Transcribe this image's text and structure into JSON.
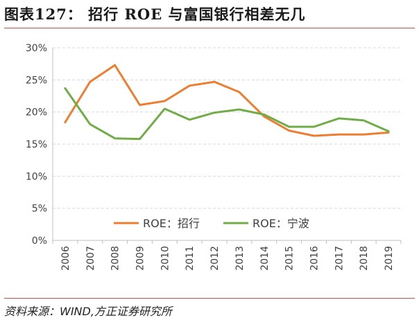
{
  "title": "图表127：  招行 ROE 与富国银行相差无几",
  "source": "资料来源：WIND,方正证券研究所",
  "colors": {
    "rule": "#c0504d",
    "series_1": "#ed7d31",
    "series_2": "#70ad47",
    "grid": "#d9d9d9",
    "axis": "#bfbfbf"
  },
  "chart_data": {
    "type": "line",
    "title": "",
    "xlabel": "",
    "ylabel": "",
    "x": [
      "2006",
      "2007",
      "2008",
      "2009",
      "2010",
      "2011",
      "2012",
      "2013",
      "2014",
      "2015",
      "2016",
      "2017",
      "2018",
      "2019"
    ],
    "ylim": [
      0,
      30
    ],
    "y_ticks": [
      "0%",
      "5%",
      "10%",
      "15%",
      "20%",
      "25%",
      "30%"
    ],
    "grid": true,
    "legend_position": "bottom-center",
    "series": [
      {
        "name": "ROE：招行",
        "color": "#ed7d31",
        "values": [
          18.4,
          24.7,
          27.3,
          21.1,
          21.7,
          24.1,
          24.7,
          23.1,
          19.3,
          17.1,
          16.3,
          16.5,
          16.5,
          16.8
        ]
      },
      {
        "name": "ROE：宁波",
        "color": "#70ad47",
        "values": [
          23.7,
          18.1,
          15.9,
          15.8,
          20.5,
          18.8,
          19.9,
          20.4,
          19.6,
          17.7,
          17.7,
          19.0,
          18.7,
          17.0
        ]
      }
    ]
  }
}
